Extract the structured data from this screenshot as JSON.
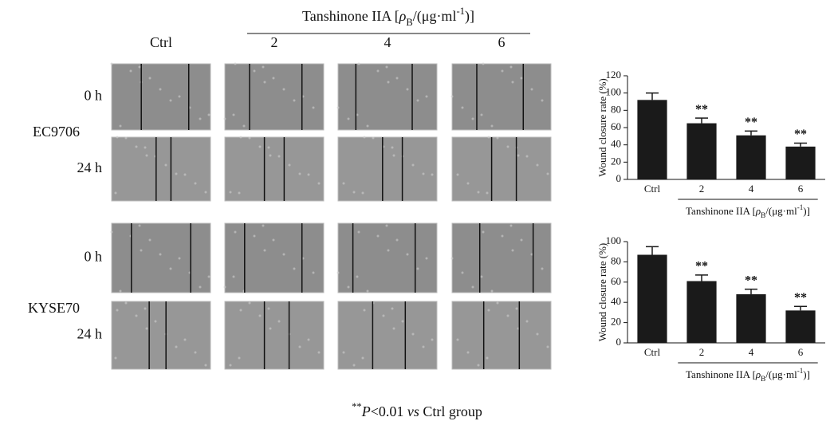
{
  "figure": {
    "group_label": [
      "Tanshinone IIA [",
      "ρ",
      "B",
      "/(μg·ml",
      "-1",
      ")]"
    ],
    "columns": [
      "Ctrl",
      "2",
      "4",
      "6"
    ],
    "rows": [
      {
        "cell_line": "EC9706",
        "times": [
          "0 h",
          "24 h"
        ]
      },
      {
        "cell_line": "KYSE70",
        "times": [
          "0 h",
          "24 h"
        ]
      }
    ],
    "footnote": [
      "**",
      "P",
      "<0.01 ",
      "vs",
      " Ctrl group"
    ]
  },
  "chart_data": [
    {
      "type": "bar",
      "ylabel": "Wound closure rate (%)",
      "xlabel_parts": [
        "Tanshinone IIA [",
        "ρ",
        "B",
        "/(μg·ml",
        "-1",
        ")]"
      ],
      "categories": [
        "Ctrl",
        "2",
        "4",
        "6"
      ],
      "values": [
        92,
        65,
        51,
        38
      ],
      "errors": [
        8,
        6,
        5,
        4
      ],
      "significance": [
        null,
        "**",
        "**",
        "**"
      ],
      "color": "#1a1a1a",
      "ylim": [
        0,
        120
      ],
      "yticks": [
        0,
        20,
        40,
        60,
        80,
        100,
        120
      ]
    },
    {
      "type": "bar",
      "ylabel": "Wound closure rate (%)",
      "xlabel_parts": [
        "Tanshinone IIA [",
        "ρ",
        "B",
        "/(μg·ml",
        "-1",
        ")]"
      ],
      "categories": [
        "Ctrl",
        "2",
        "4",
        "6"
      ],
      "values": [
        87,
        61,
        48,
        32
      ],
      "errors": [
        8,
        6,
        5,
        4
      ],
      "significance": [
        null,
        "**",
        "**",
        "**"
      ],
      "color": "#1a1a1a",
      "ylim": [
        0,
        100
      ],
      "yticks": [
        0,
        20,
        40,
        60,
        80,
        100
      ]
    }
  ]
}
